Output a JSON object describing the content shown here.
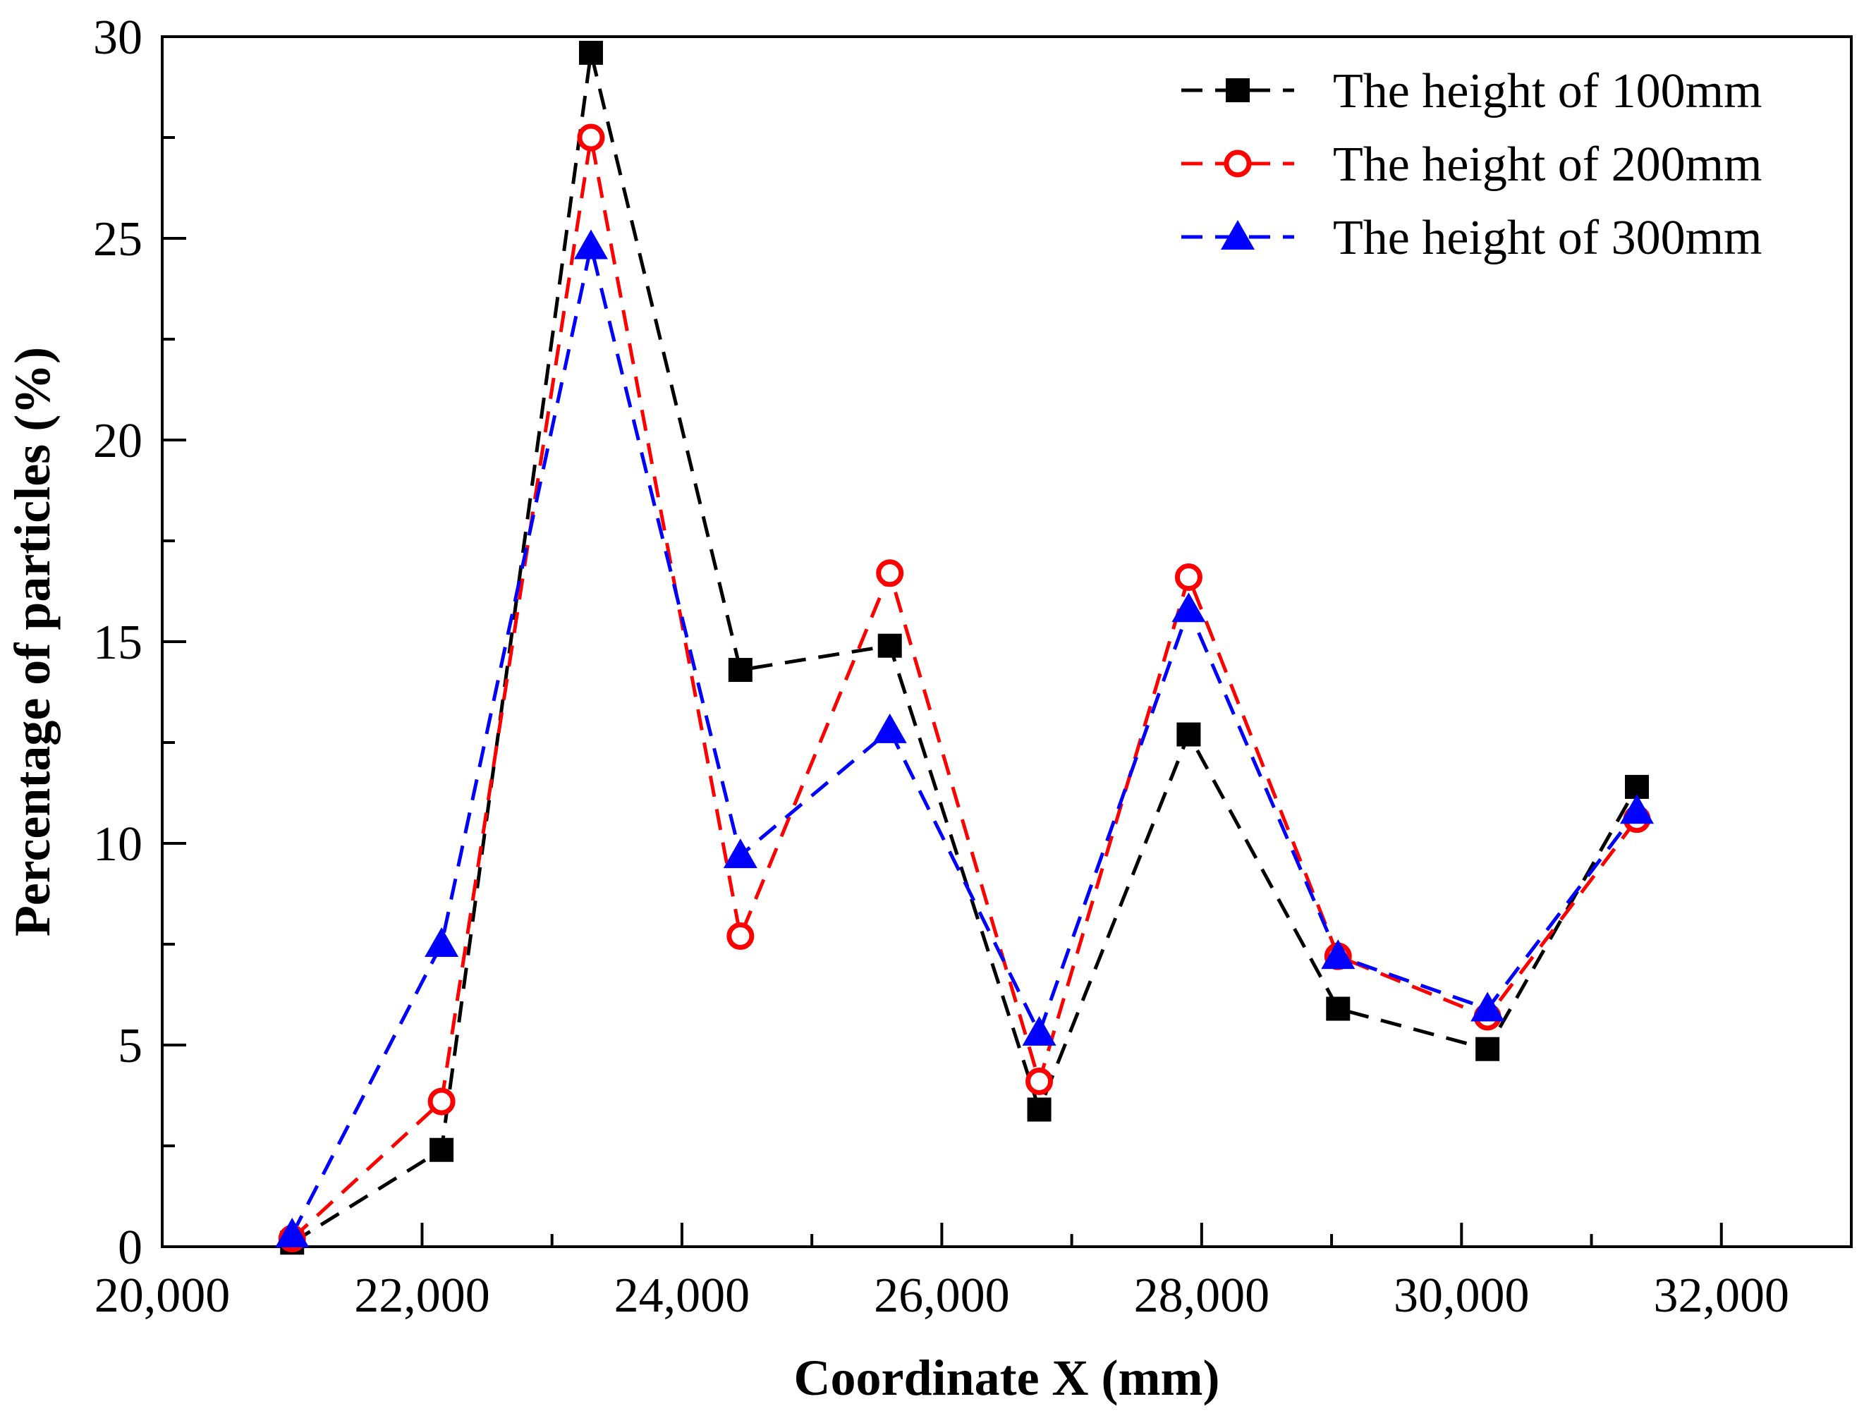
{
  "chart_data": {
    "type": "line",
    "title": "",
    "xlabel": "Coordinate X (mm)",
    "ylabel": "Percentage of particles (%)",
    "xlim": [
      20000,
      33000
    ],
    "ylim": [
      0,
      30
    ],
    "x_ticks": [
      20000,
      22000,
      24000,
      26000,
      28000,
      30000,
      32000
    ],
    "x_tick_labels": [
      "20,000",
      "22,000",
      "24,000",
      "26,000",
      "28,000",
      "30,000",
      "32,000"
    ],
    "y_ticks": [
      0,
      5,
      10,
      15,
      20,
      25,
      30
    ],
    "y_tick_labels": [
      "0",
      "5",
      "10",
      "15",
      "20",
      "25",
      "30"
    ],
    "grid": false,
    "legend_position": "top-right",
    "x": [
      21000,
      22150,
      23300,
      24450,
      25600,
      26750,
      27900,
      29050,
      30200,
      31350
    ],
    "series": [
      {
        "name": "The height of 100mm",
        "color": "#000000",
        "marker": "square",
        "values": [
          0.1,
          2.4,
          29.6,
          14.3,
          14.9,
          3.4,
          12.7,
          5.9,
          4.9,
          11.4
        ]
      },
      {
        "name": "The height of 200mm",
        "color": "#ff0000",
        "marker": "circle",
        "values": [
          0.2,
          3.6,
          27.5,
          7.7,
          16.7,
          4.1,
          16.6,
          7.2,
          5.7,
          10.6
        ]
      },
      {
        "name": "The height of 300mm",
        "color": "#0000ff",
        "marker": "triangle",
        "values": [
          0.3,
          7.5,
          24.8,
          9.7,
          12.8,
          5.3,
          15.8,
          7.2,
          5.9,
          10.8
        ]
      }
    ]
  }
}
